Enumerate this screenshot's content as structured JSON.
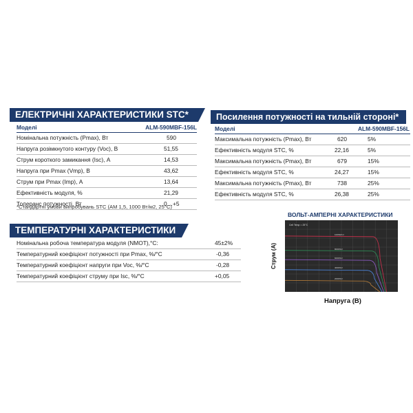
{
  "electrical": {
    "title": "ЕЛЕКТРИЧНІ ХАРАКТЕРИСТИКИ STC*",
    "header_label": "Моделі",
    "header_model": "ALM-590MBF-156L",
    "rows": [
      {
        "label": "Номінальна потужність (Pmax), Вт",
        "value": "590"
      },
      {
        "label": "Напруга розімкнутого контуру (Voc), В",
        "value": "51,55"
      },
      {
        "label": "Струм короткого замикання (Isc), А",
        "value": "14,53"
      },
      {
        "label": "Напруга при Pmax (Vmp), В",
        "value": "43,62"
      },
      {
        "label": "Струм при Pmax (Imp), А",
        "value": "13,64"
      },
      {
        "label": "Ефективність модуля, %",
        "value": "21,29"
      },
      {
        "label": "Толеранс потужності, Вт",
        "value": "0…+5"
      }
    ],
    "note": "*Стандартні умови випробувань STC (AM 1,5, 1000 Вт/м2, 25°C)"
  },
  "bifacial": {
    "title": "Посилення потужності на тильній стороні*",
    "header_label": "Моделі",
    "header_model": "ALM-590MBF-156L",
    "rows": [
      {
        "label": "Максимальна потужність (Pmax), Вт",
        "value": "620",
        "pct": "5%"
      },
      {
        "label": "Ефективність модуля STC, %",
        "value": "22,16",
        "pct": "5%"
      },
      {
        "label": "Максимальна потужність (Pmax), Вт",
        "value": "679",
        "pct": "15%"
      },
      {
        "label": "Ефективність модуля STC, %",
        "value": "24,27",
        "pct": "15%"
      },
      {
        "label": "Максимальна потужність (Pmax), Вт",
        "value": "738",
        "pct": "25%"
      },
      {
        "label": "Ефективність модуля STC, %",
        "value": "26,38",
        "pct": "25%"
      }
    ]
  },
  "temperature": {
    "title": "ТЕМПЕРАТУРНІ ХАРАКТЕРИСТИКИ",
    "rows": [
      {
        "label": "Номінальна робоча температура модуля (NMOT),°C:",
        "value": "45±2%"
      },
      {
        "label": "Температурний коефіцієнт потужності при Pmax, %/°C",
        "value": "-0,36"
      },
      {
        "label": "Температурний коефіцієнт напруги при Voc, %/°C",
        "value": "-0,28"
      },
      {
        "label": "Температурний коефіцієнт струму при Isc, %/°C",
        "value": "+0,05"
      }
    ]
  },
  "iv_chart": {
    "title": "ВОЛЬТ-АМПЕРНІ ХАРАКТЕРИСТИКИ",
    "xlabel": "Напруга (В)",
    "ylabel": "Струм (А)",
    "inner_label": "Cell Temp = 25°C",
    "colors": {
      "bg": "#2a2a2a",
      "grid": "#5a5a5a"
    },
    "curves": [
      {
        "label": "1000W/m²",
        "color": "#c0304a"
      },
      {
        "label": "800W/m²",
        "color": "#2e8a55"
      },
      {
        "label": "600W/m²",
        "color": "#8c5bc4"
      },
      {
        "label": "400W/m²",
        "color": "#4a7fd0"
      },
      {
        "label": "200W/m²",
        "color": "#b07a3a"
      }
    ]
  },
  "colors": {
    "brand": "#1d3a6b"
  }
}
